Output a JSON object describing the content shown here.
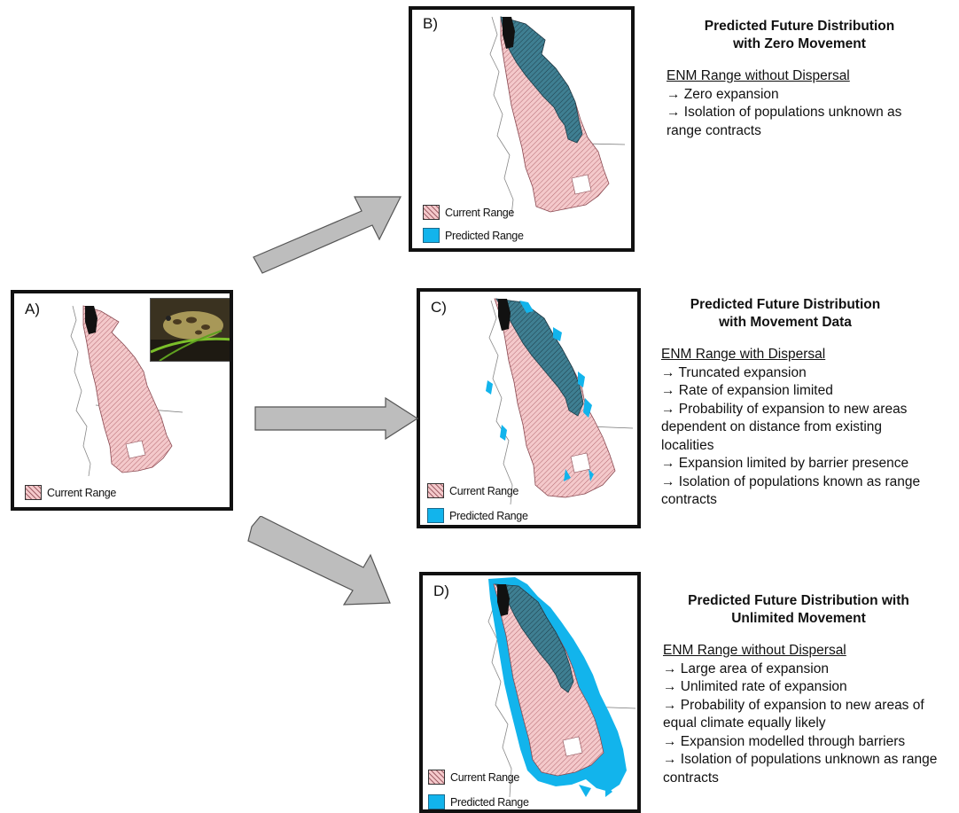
{
  "panels": {
    "a": {
      "label": "A)",
      "legend": [
        "Current Range"
      ]
    },
    "b": {
      "label": "B)",
      "legend": [
        "Current Range",
        "Predicted Range"
      ],
      "title": "Predicted Future Distribution with Zero Movement",
      "title_lines": [
        "Predicted Future Distribution",
        "with Zero Movement"
      ],
      "subtitle": "ENM Range without Dispersal",
      "points": [
        "→ Zero expansion",
        "→ Isolation of populations unknown as range contracts"
      ]
    },
    "c": {
      "label": "C)",
      "legend": [
        "Current Range",
        "Predicted Range"
      ],
      "title": "Predicted Future Distribution with Movement Data",
      "title_lines": [
        "Predicted Future Distribution",
        "with Movement Data"
      ],
      "subtitle": "ENM Range with Dispersal",
      "points": [
        "→ Truncated expansion",
        "→ Rate of expansion limited",
        "→ Probability of expansion to new areas dependent on distance from existing localities",
        "→ Expansion limited by barrier presence",
        "→ Isolation of populations known as range contracts"
      ]
    },
    "d": {
      "label": "D)",
      "legend": [
        "Current Range",
        "Predicted Range"
      ],
      "title": "Predicted Future Distribution with Unlimited Movement",
      "title_lines": [
        "Predicted Future Distribution with",
        "Unlimited Movement"
      ],
      "subtitle": "ENM Range without Dispersal",
      "points": [
        "→ Large area of expansion",
        "→ Unlimited rate of expansion",
        "→ Probability of expansion to new areas of equal climate equally likely",
        "→ Expansion modelled through barriers",
        "→ Isolation of populations unknown as range contracts"
      ]
    }
  },
  "colors": {
    "current_range": "#f4c9cb",
    "current_range_hatch": "#a06068",
    "predicted_range": "#12b4ec",
    "overlap": "#3f7f92",
    "arrow_fill": "#bdbdbd",
    "frame": "#111111"
  },
  "icons": [
    "frog-photo",
    "arrow-right",
    "arrow-down-right",
    "arrow-up-right"
  ]
}
